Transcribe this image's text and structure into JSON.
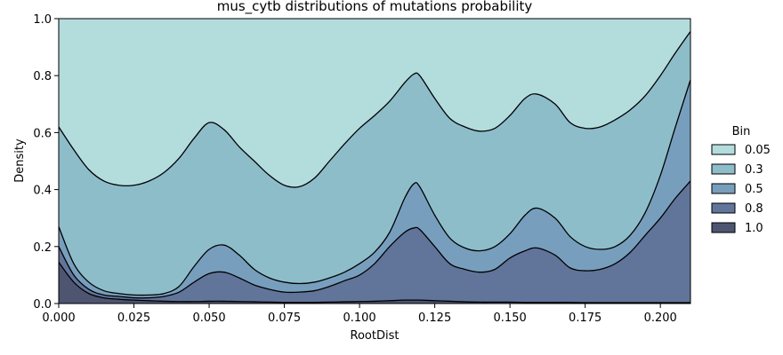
{
  "chart_data": {
    "type": "area",
    "stacked": true,
    "normalized": true,
    "title": "mus_cytb distributions of mutations probability",
    "xlabel": "RootDist",
    "ylabel": "Density",
    "xlim": [
      0,
      0.21
    ],
    "ylim": [
      0,
      1.0
    ],
    "xticks": [
      0.0,
      0.025,
      0.05,
      0.075,
      0.1,
      0.125,
      0.15,
      0.175,
      0.2
    ],
    "xtick_labels": [
      "0.000",
      "0.025",
      "0.050",
      "0.075",
      "0.100",
      "0.125",
      "0.150",
      "0.175",
      "0.200"
    ],
    "yticks": [
      0.0,
      0.2,
      0.4,
      0.6,
      0.8,
      1.0
    ],
    "ytick_labels": [
      "0.0",
      "0.2",
      "0.4",
      "0.6",
      "0.8",
      "1.0"
    ],
    "grid": false,
    "legend": {
      "title": "Bin",
      "placement": "right"
    },
    "x": [
      0.0,
      0.005,
      0.01,
      0.015,
      0.02,
      0.025,
      0.03,
      0.035,
      0.04,
      0.045,
      0.05,
      0.055,
      0.06,
      0.065,
      0.07,
      0.075,
      0.08,
      0.085,
      0.09,
      0.095,
      0.1,
      0.105,
      0.11,
      0.115,
      0.118,
      0.12,
      0.125,
      0.13,
      0.135,
      0.14,
      0.145,
      0.15,
      0.155,
      0.159,
      0.165,
      0.17,
      0.175,
      0.18,
      0.185,
      0.19,
      0.195,
      0.2,
      0.205,
      0.21
    ],
    "boundaries": [
      {
        "name": "0.05",
        "color": "#b3dcdd",
        "upper": [
          1.0,
          1.0,
          1.0,
          1.0,
          1.0,
          1.0,
          1.0,
          1.0,
          1.0,
          1.0,
          1.0,
          1.0,
          1.0,
          1.0,
          1.0,
          1.0,
          1.0,
          1.0,
          1.0,
          1.0,
          1.0,
          1.0,
          1.0,
          1.0,
          1.0,
          1.0,
          1.0,
          1.0,
          1.0,
          1.0,
          1.0,
          1.0,
          1.0,
          1.0,
          1.0,
          1.0,
          1.0,
          1.0,
          1.0,
          1.0,
          1.0,
          1.0,
          1.0,
          1.0
        ]
      },
      {
        "name": "0.3",
        "color": "#8ebdca",
        "upper": [
          0.62,
          0.54,
          0.47,
          0.43,
          0.415,
          0.415,
          0.43,
          0.46,
          0.51,
          0.58,
          0.635,
          0.61,
          0.55,
          0.5,
          0.45,
          0.415,
          0.41,
          0.44,
          0.5,
          0.56,
          0.615,
          0.66,
          0.71,
          0.775,
          0.805,
          0.8,
          0.72,
          0.65,
          0.62,
          0.605,
          0.615,
          0.66,
          0.72,
          0.735,
          0.7,
          0.635,
          0.615,
          0.62,
          0.645,
          0.68,
          0.73,
          0.8,
          0.88,
          0.955
        ]
      },
      {
        "name": "0.5",
        "color": "#779fbd",
        "upper": [
          0.27,
          0.14,
          0.075,
          0.045,
          0.035,
          0.03,
          0.03,
          0.035,
          0.06,
          0.13,
          0.19,
          0.205,
          0.17,
          0.12,
          0.09,
          0.075,
          0.07,
          0.075,
          0.09,
          0.11,
          0.14,
          0.18,
          0.25,
          0.37,
          0.42,
          0.41,
          0.31,
          0.23,
          0.195,
          0.185,
          0.2,
          0.245,
          0.31,
          0.335,
          0.3,
          0.235,
          0.2,
          0.19,
          0.2,
          0.24,
          0.32,
          0.45,
          0.62,
          0.785
        ]
      },
      {
        "name": "0.8",
        "color": "#61749a",
        "upper": [
          0.2,
          0.1,
          0.05,
          0.03,
          0.025,
          0.02,
          0.02,
          0.025,
          0.04,
          0.075,
          0.105,
          0.11,
          0.09,
          0.065,
          0.05,
          0.04,
          0.04,
          0.045,
          0.06,
          0.08,
          0.1,
          0.14,
          0.2,
          0.25,
          0.265,
          0.26,
          0.2,
          0.14,
          0.12,
          0.11,
          0.12,
          0.16,
          0.185,
          0.195,
          0.17,
          0.125,
          0.115,
          0.12,
          0.14,
          0.18,
          0.24,
          0.3,
          0.37,
          0.43
        ]
      },
      {
        "name": "1.0",
        "color": "#4d5571",
        "upper": [
          0.145,
          0.075,
          0.035,
          0.02,
          0.015,
          0.012,
          0.01,
          0.008,
          0.007,
          0.007,
          0.008,
          0.008,
          0.007,
          0.006,
          0.005,
          0.004,
          0.004,
          0.004,
          0.005,
          0.006,
          0.007,
          0.008,
          0.01,
          0.012,
          0.012,
          0.012,
          0.01,
          0.008,
          0.006,
          0.005,
          0.005,
          0.005,
          0.004,
          0.004,
          0.004,
          0.004,
          0.003,
          0.003,
          0.003,
          0.003,
          0.003,
          0.003,
          0.003,
          0.003
        ]
      }
    ]
  }
}
